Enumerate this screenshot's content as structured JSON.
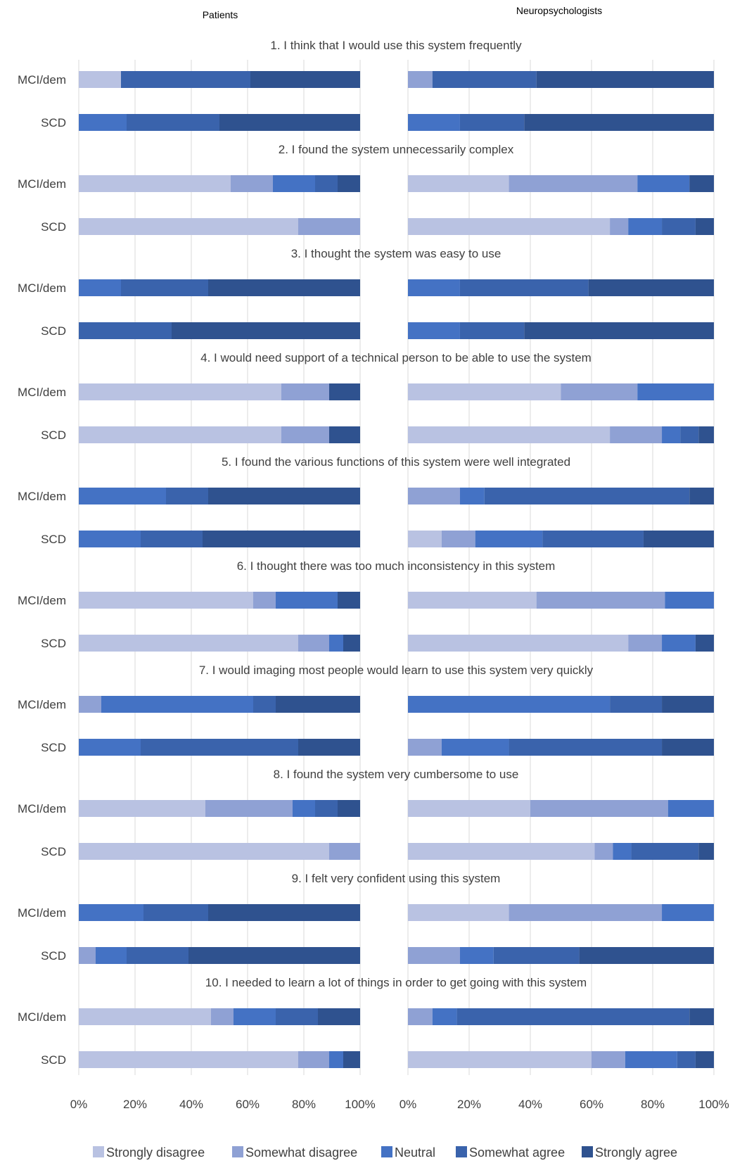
{
  "headers": {
    "left": "Patients",
    "right": "Neuropsychologists"
  },
  "colors": [
    "#b9c2e2",
    "#8fa1d4",
    "#4472c4",
    "#3a63ac",
    "#2f528f"
  ],
  "chart_data": {
    "type": "bar",
    "orientation": "horizontal",
    "stacked": "percent",
    "xlim": [
      0,
      100
    ],
    "ticks": [
      "0%",
      "20%",
      "40%",
      "60%",
      "80%",
      "100%"
    ],
    "legend": {
      "position": "bottom",
      "entries": [
        "Strongly disagree",
        "Somewhat disagree",
        "Neutral",
        "Somewhat agree",
        "Strongly agree"
      ]
    },
    "groups": [
      "MCI/dem",
      "SCD"
    ],
    "questions": [
      {
        "title": "1. I think that I would use this system frequently",
        "patients": {
          "MCI/dem": [
            15,
            0,
            0,
            46,
            39
          ],
          "SCD": [
            0,
            0,
            17,
            33,
            50
          ]
        },
        "neuro": {
          "MCI/dem": [
            0,
            8,
            0,
            34,
            58
          ],
          "SCD": [
            0,
            0,
            17,
            21,
            62
          ]
        }
      },
      {
        "title": "2. I found the system unnecessarily complex",
        "patients": {
          "MCI/dem": [
            54,
            15,
            15,
            8,
            8
          ],
          "SCD": [
            78,
            22,
            0,
            0,
            0
          ]
        },
        "neuro": {
          "MCI/dem": [
            33,
            42,
            17,
            0,
            8
          ],
          "SCD": [
            66,
            6,
            11,
            11,
            6
          ]
        }
      },
      {
        "title": "3. I thought the system was easy to use",
        "patients": {
          "MCI/dem": [
            0,
            0,
            15,
            31,
            54
          ],
          "SCD": [
            0,
            0,
            0,
            33,
            67
          ]
        },
        "neuro": {
          "MCI/dem": [
            0,
            0,
            17,
            42,
            41
          ],
          "SCD": [
            0,
            0,
            17,
            21,
            62
          ]
        }
      },
      {
        "title": "4. I would need support of a technical person to be able to use the system",
        "patients": {
          "MCI/dem": [
            72,
            17,
            0,
            0,
            11
          ],
          "SCD": [
            72,
            17,
            0,
            0,
            11
          ]
        },
        "neuro": {
          "MCI/dem": [
            50,
            25,
            25,
            0,
            0
          ],
          "SCD": [
            66,
            17,
            6,
            6,
            5
          ]
        }
      },
      {
        "title": "5. I found the various functions of this system were well integrated",
        "patients": {
          "MCI/dem": [
            0,
            0,
            31,
            15,
            54
          ],
          "SCD": [
            0,
            0,
            22,
            22,
            56
          ]
        },
        "neuro": {
          "MCI/dem": [
            0,
            17,
            8,
            67,
            8
          ],
          "SCD": [
            11,
            11,
            22,
            33,
            23
          ]
        }
      },
      {
        "title": "6. I thought there was too much inconsistency in this system",
        "patients": {
          "MCI/dem": [
            62,
            8,
            22,
            0,
            8
          ],
          "SCD": [
            78,
            11,
            5,
            0,
            6
          ]
        },
        "neuro": {
          "MCI/dem": [
            42,
            42,
            16,
            0,
            0
          ],
          "SCD": [
            72,
            11,
            11,
            0,
            6
          ]
        }
      },
      {
        "title": "7. I would imaging most people would learn to use this system very quickly",
        "patients": {
          "MCI/dem": [
            0,
            8,
            54,
            8,
            30
          ],
          "SCD": [
            0,
            0,
            22,
            56,
            22
          ]
        },
        "neuro": {
          "MCI/dem": [
            0,
            0,
            66,
            17,
            17
          ],
          "SCD": [
            0,
            11,
            22,
            50,
            17
          ]
        }
      },
      {
        "title": "8. I found the system very cumbersome to use",
        "patients": {
          "MCI/dem": [
            45,
            31,
            8,
            8,
            8
          ],
          "SCD": [
            89,
            11,
            0,
            0,
            0
          ]
        },
        "neuro": {
          "MCI/dem": [
            40,
            45,
            15,
            0,
            0
          ],
          "SCD": [
            61,
            6,
            6,
            22,
            5
          ]
        }
      },
      {
        "title": "9. I felt very confident using this system",
        "patients": {
          "MCI/dem": [
            0,
            0,
            23,
            23,
            54
          ],
          "SCD": [
            0,
            6,
            11,
            22,
            61
          ]
        },
        "neuro": {
          "MCI/dem": [
            33,
            50,
            17,
            0,
            0
          ],
          "SCD": [
            0,
            17,
            11,
            28,
            44
          ]
        }
      },
      {
        "title": "10. I needed to learn a lot of things in order to get going with this system",
        "patients": {
          "MCI/dem": [
            47,
            8,
            15,
            15,
            15
          ],
          "SCD": [
            78,
            11,
            5,
            0,
            6
          ]
        },
        "neuro": {
          "MCI/dem": [
            0,
            8,
            8,
            76,
            8
          ],
          "SCD": [
            60,
            11,
            17,
            6,
            6
          ]
        }
      }
    ]
  }
}
